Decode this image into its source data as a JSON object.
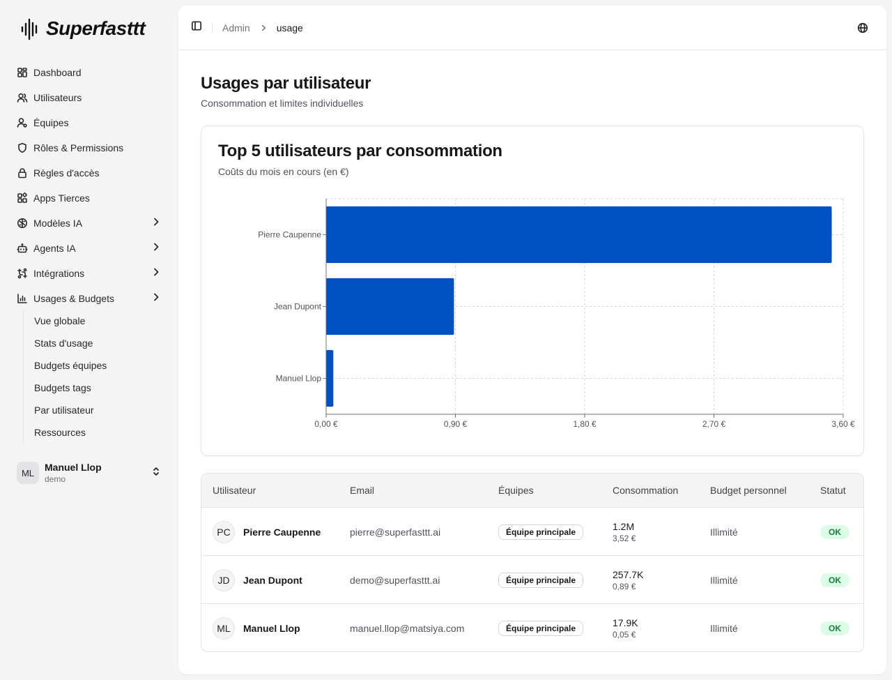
{
  "brand": {
    "name": "Superfasttt"
  },
  "sidebar": {
    "items": [
      {
        "label": "Dashboard",
        "icon": "dashboard-icon",
        "chevron": false
      },
      {
        "label": "Utilisateurs",
        "icon": "users-icon",
        "chevron": false
      },
      {
        "label": "Équipes",
        "icon": "team-icon",
        "chevron": false
      },
      {
        "label": "Rôles & Permissions",
        "icon": "shield-icon",
        "chevron": false
      },
      {
        "label": "Règles d'accès",
        "icon": "lock-icon",
        "chevron": false
      },
      {
        "label": "Apps Tierces",
        "icon": "apps-icon",
        "chevron": false
      },
      {
        "label": "Modèles IA",
        "icon": "brain-icon",
        "chevron": true
      },
      {
        "label": "Agents IA",
        "icon": "bot-icon",
        "chevron": true
      },
      {
        "label": "Intégrations",
        "icon": "workflow-icon",
        "chevron": true
      },
      {
        "label": "Usages & Budgets",
        "icon": "bar-chart-icon",
        "chevron": true
      }
    ],
    "subitems": [
      "Vue globale",
      "Stats d'usage",
      "Budgets équipes",
      "Budgets tags",
      "Par utilisateur",
      "Ressources"
    ],
    "user": {
      "initials": "ML",
      "name": "Manuel Llop",
      "sub": "demo"
    }
  },
  "topbar": {
    "breadcrumb": {
      "parent": "Admin",
      "current": "usage"
    }
  },
  "page": {
    "title": "Usages par utilisateur",
    "subtitle": "Consommation et limites individuelles"
  },
  "chart_card": {
    "title": "Top 5 utilisateurs par consommation",
    "subtitle": "Coûts du mois en cours (en €)"
  },
  "chart_data": {
    "type": "bar",
    "orientation": "horizontal",
    "categories": [
      "Pierre Caupenne",
      "Jean Dupont",
      "Manuel Llop"
    ],
    "values": [
      3.52,
      0.89,
      0.05
    ],
    "xlim": [
      0,
      3.6
    ],
    "xticks": [
      "0,00 €",
      "0,90 €",
      "1,80 €",
      "2,70 €",
      "3,60 €"
    ],
    "xtick_values": [
      0,
      0.9,
      1.8,
      2.7,
      3.6
    ],
    "grid": true,
    "bar_color": "#0051bf"
  },
  "table": {
    "headers": [
      "Utilisateur",
      "Email",
      "Équipes",
      "Consommation",
      "Budget personnel",
      "Statut"
    ],
    "rows": [
      {
        "initials": "PC",
        "name": "Pierre Caupenne",
        "email": "pierre@superfasttt.ai",
        "team": "Équipe principale",
        "tokens": "1.2M",
        "cost": "3,52 €",
        "budget": "Illimité",
        "status": "OK"
      },
      {
        "initials": "JD",
        "name": "Jean Dupont",
        "email": "demo@superfasttt.ai",
        "team": "Équipe principale",
        "tokens": "257.7K",
        "cost": "0,89 €",
        "budget": "Illimité",
        "status": "OK"
      },
      {
        "initials": "ML",
        "name": "Manuel Llop",
        "email": "manuel.llop@matsiya.com",
        "team": "Équipe principale",
        "tokens": "17.9K",
        "cost": "0,05 €",
        "budget": "Illimité",
        "status": "OK"
      }
    ]
  },
  "colors": {
    "accent": "#0051bf",
    "status_ok_bg": "#dcfce7",
    "status_ok_text": "#15803d"
  }
}
